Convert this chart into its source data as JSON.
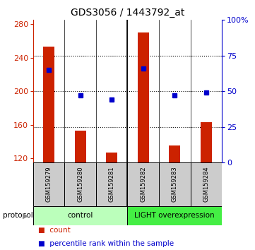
{
  "title": "GDS3056 / 1443792_at",
  "samples": [
    "GSM159279",
    "GSM159280",
    "GSM159281",
    "GSM159282",
    "GSM159283",
    "GSM159284"
  ],
  "counts": [
    253,
    153,
    127,
    270,
    135,
    163
  ],
  "percentiles": [
    65,
    47,
    44,
    66,
    47,
    49
  ],
  "ylim_left": [
    115,
    285
  ],
  "ylim_right": [
    0,
    100
  ],
  "yticks_left": [
    120,
    160,
    200,
    240,
    280
  ],
  "yticks_right": [
    0,
    25,
    50,
    75,
    100
  ],
  "ytick_labels_right": [
    "0",
    "25",
    "50",
    "75",
    "100%"
  ],
  "bar_color": "#cc2200",
  "dot_color": "#0000cc",
  "group1_label": "control",
  "group2_label": "LIGHT overexpression",
  "group1_color": "#bbffbb",
  "group2_color": "#44ee44",
  "protocol_label": "protocol",
  "legend_count": "count",
  "legend_percentile": "percentile rank within the sample",
  "bg_color": "#ffffff",
  "sample_box_color": "#cccccc",
  "title_fontsize": 10,
  "tick_fontsize": 8,
  "bar_width": 0.35
}
